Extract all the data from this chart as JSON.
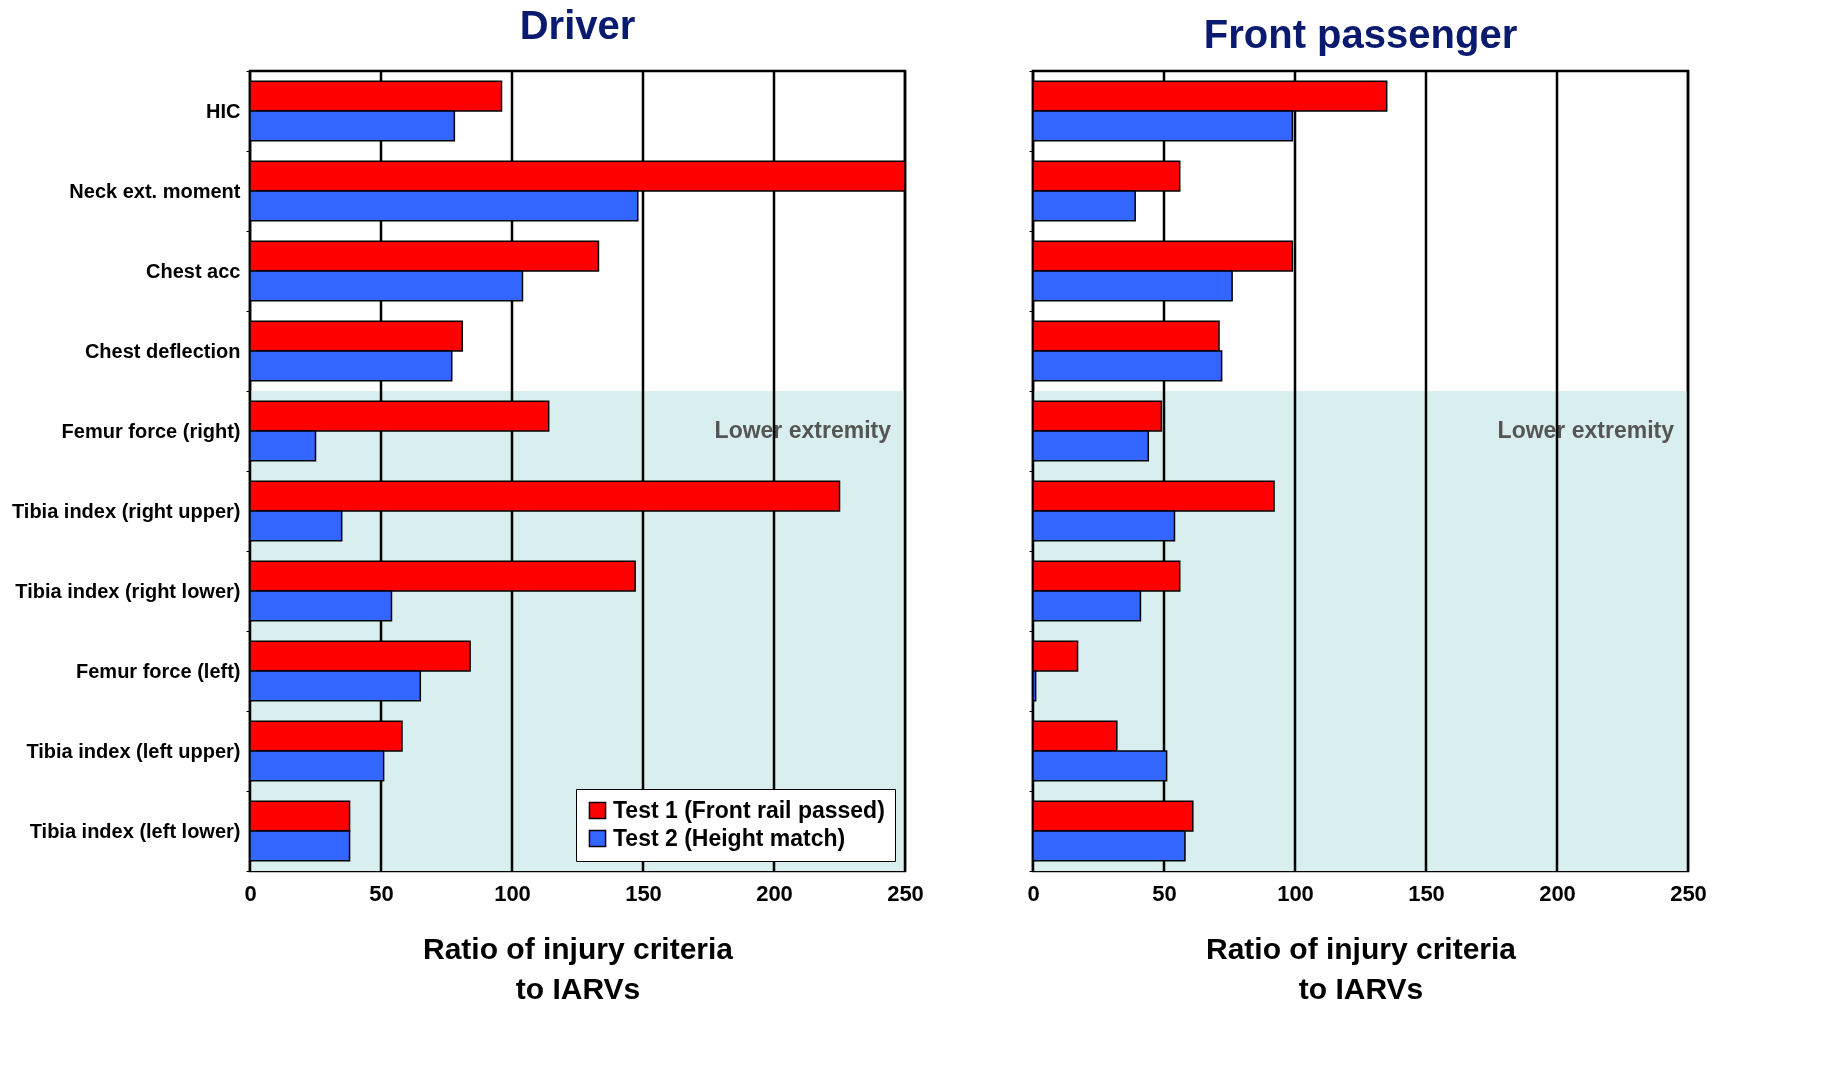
{
  "chart_data": [
    {
      "type": "bar",
      "orientation": "horizontal",
      "title": "Driver",
      "xlabel": "Ratio of injury criteria\nto IARVs",
      "categories": [
        "HIC",
        "Neck ext. moment",
        "Chest acc",
        "Chest deflection",
        "Femur force (right)",
        "Tibia index (right upper)",
        "Tibia index (right lower)",
        "Femur force (left)",
        "Tibia index (left upper)",
        "Tibia index (left lower)"
      ],
      "series": [
        {
          "name": "Test 1 (Front rail passed)",
          "color": "#ff0000",
          "values": [
            96,
            250,
            133,
            81,
            114,
            225,
            147,
            84,
            58,
            38
          ]
        },
        {
          "name": "Test 2 (Height match)",
          "color": "#3366ff",
          "values": [
            78,
            148,
            104,
            77,
            25,
            35,
            54,
            65,
            51,
            38
          ]
        }
      ],
      "xlim": [
        0,
        250
      ],
      "xticks": [
        0,
        50,
        100,
        150,
        200,
        250
      ],
      "grid": "x",
      "legend": "bottom right",
      "bands": [
        {
          "axis": "y",
          "from": "Femur force (right)",
          "to": "Tibia index (left lower)",
          "label": "Lower extremity",
          "color": "#d9eeee"
        }
      ]
    },
    {
      "type": "bar",
      "orientation": "horizontal",
      "title": "Front passenger",
      "xlabel": "Ratio of injury criteria\nto IARVs",
      "categories": [
        "HIC",
        "Neck ext. moment",
        "Chest acc",
        "Chest deflection",
        "Femur force (right)",
        "Tibia index (right upper)",
        "Tibia index (right lower)",
        "Femur force (left)",
        "Tibia index (left upper)",
        "Tibia index (left lower)"
      ],
      "series": [
        {
          "name": "Test 1 (Front rail passed)",
          "color": "#ff0000",
          "values": [
            135,
            56,
            99,
            71,
            49,
            92,
            56,
            17,
            32,
            61
          ]
        },
        {
          "name": "Test 2 (Height match)",
          "color": "#3366ff",
          "values": [
            99,
            39,
            76,
            72,
            44,
            54,
            41,
            1,
            51,
            58
          ]
        }
      ],
      "xlim": [
        0,
        250
      ],
      "xticks": [
        0,
        50,
        100,
        150,
        200,
        250
      ],
      "grid": "x",
      "tick_labels": "x",
      "bands": [
        {
          "axis": "y",
          "from": "Femur force (right)",
          "to": "Tibia index (left lower)",
          "label": "Lower extremity",
          "color": "#d9eeee"
        }
      ]
    }
  ]
}
